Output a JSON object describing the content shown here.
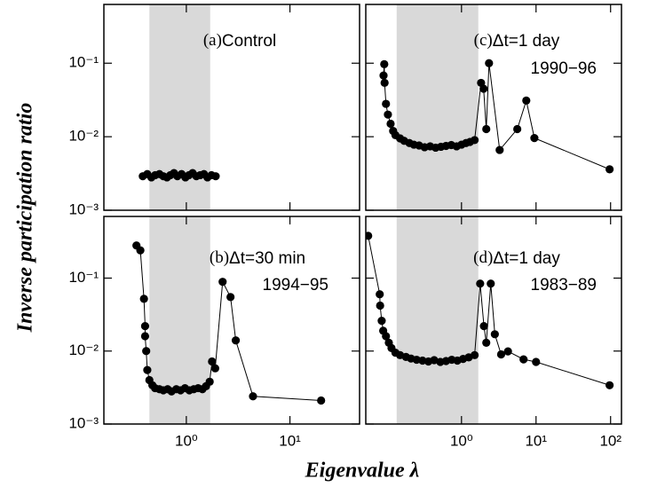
{
  "xlabel": "Eigenvalue λ",
  "ylabel": "Inverse participation ratio",
  "chart_data": [
    {
      "type": "line",
      "label": "(a)",
      "title": "Control",
      "color": "#000000",
      "band": [
        0.44,
        1.7
      ],
      "band_color": "#d9d9d9",
      "log_x": true,
      "log_y": true,
      "x": [
        0.38,
        0.42,
        0.46,
        0.5,
        0.55,
        0.6,
        0.65,
        0.7,
        0.76,
        0.82,
        0.9,
        0.98,
        1.06,
        1.15,
        1.25,
        1.36,
        1.48,
        1.6,
        1.75,
        1.92
      ],
      "y": [
        0.0029,
        0.0031,
        0.0028,
        0.003,
        0.0031,
        0.0029,
        0.0028,
        0.003,
        0.0032,
        0.0029,
        0.0031,
        0.0028,
        0.003,
        0.0032,
        0.0029,
        0.003,
        0.0031,
        0.0028,
        0.003,
        0.0029
      ],
      "xlim": [
        0.16,
        47
      ],
      "ylim": [
        0.001,
        0.63
      ],
      "xticks": [
        1,
        10
      ],
      "yticks": [
        {
          "value": 0.001,
          "label": "10⁻³"
        },
        {
          "value": 0.01,
          "label": "10⁻²"
        },
        {
          "value": 0.1,
          "label": "10⁻¹"
        }
      ]
    },
    {
      "type": "line",
      "label": "(b)",
      "title": "Δt=30 min",
      "subtitle": "1994−95",
      "color": "#000000",
      "band": [
        0.44,
        1.7
      ],
      "band_color": "#d9d9d9",
      "log_x": true,
      "log_y": true,
      "x": [
        0.33,
        0.36,
        0.39,
        0.4,
        0.4,
        0.41,
        0.42,
        0.44,
        0.47,
        0.5,
        0.55,
        0.6,
        0.66,
        0.72,
        0.8,
        0.88,
        0.97,
        1.07,
        1.18,
        1.3,
        1.43,
        1.55,
        1.68,
        1.77,
        1.9,
        2.24,
        2.67,
        3.0,
        4.4,
        20
      ],
      "y": [
        0.28,
        0.24,
        0.052,
        0.022,
        0.016,
        0.01,
        0.0055,
        0.004,
        0.0034,
        0.0031,
        0.003,
        0.0029,
        0.003,
        0.0028,
        0.003,
        0.0029,
        0.0031,
        0.0029,
        0.003,
        0.0031,
        0.003,
        0.0033,
        0.0038,
        0.0072,
        0.0058,
        0.089,
        0.055,
        0.014,
        0.0024,
        0.0021
      ],
      "xlim": [
        0.16,
        47
      ],
      "ylim": [
        0.001,
        0.7
      ],
      "xticks": [
        {
          "value": 1,
          "label": "10⁰"
        },
        {
          "value": 10,
          "label": "10¹"
        }
      ],
      "yticks": [
        {
          "value": 0.001,
          "label": "10⁻³"
        },
        {
          "value": 0.01,
          "label": "10⁻²"
        },
        {
          "value": 0.1,
          "label": "10⁻¹"
        }
      ]
    },
    {
      "type": "line",
      "label": "(c)",
      "title": "Δt=1 day",
      "subtitle": "1990−96",
      "color": "#000000",
      "band": [
        0.135,
        1.68
      ],
      "band_color": "#d9d9d9",
      "log_x": true,
      "log_y": true,
      "x": [
        0.09,
        0.092,
        0.093,
        0.097,
        0.103,
        0.112,
        0.121,
        0.13,
        0.15,
        0.17,
        0.2,
        0.23,
        0.27,
        0.32,
        0.38,
        0.45,
        0.53,
        0.62,
        0.73,
        0.86,
        1.0,
        1.15,
        1.3,
        1.5,
        1.83,
        1.98,
        2.15,
        2.34,
        3.25,
        5.6,
        7.4,
        9.5,
        97
      ],
      "y": [
        0.068,
        0.097,
        0.054,
        0.028,
        0.02,
        0.015,
        0.012,
        0.0105,
        0.0095,
        0.0088,
        0.0082,
        0.0078,
        0.0076,
        0.0072,
        0.0074,
        0.0071,
        0.0073,
        0.0075,
        0.0077,
        0.0074,
        0.0078,
        0.0082,
        0.0085,
        0.009,
        0.054,
        0.045,
        0.0127,
        0.1,
        0.0066,
        0.0127,
        0.031,
        0.0096,
        0.0036
      ],
      "xlim": [
        0.052,
        140
      ],
      "ylim": [
        0.001,
        0.63
      ],
      "xticks": [
        1,
        10,
        100
      ],
      "yticks": [
        0.001,
        0.01,
        0.1
      ]
    },
    {
      "type": "line",
      "label": "(d)",
      "title": "Δt=1 day",
      "subtitle": "1983−89",
      "color": "#000000",
      "band": [
        0.135,
        1.68
      ],
      "band_color": "#d9d9d9",
      "log_x": true,
      "log_y": true,
      "x": [
        0.056,
        0.08,
        0.081,
        0.085,
        0.089,
        0.097,
        0.106,
        0.115,
        0.13,
        0.15,
        0.18,
        0.21,
        0.25,
        0.3,
        0.36,
        0.43,
        0.52,
        0.62,
        0.74,
        0.88,
        1.05,
        1.25,
        1.5,
        1.78,
        2.0,
        2.15,
        2.47,
        2.8,
        3.4,
        4.2,
        6.8,
        10,
        97
      ],
      "y": [
        0.38,
        0.06,
        0.042,
        0.026,
        0.019,
        0.016,
        0.013,
        0.011,
        0.0095,
        0.0088,
        0.0083,
        0.0079,
        0.0076,
        0.0074,
        0.0072,
        0.0075,
        0.0071,
        0.0073,
        0.0076,
        0.0074,
        0.0078,
        0.0082,
        0.0088,
        0.084,
        0.022,
        0.013,
        0.084,
        0.017,
        0.009,
        0.0099,
        0.0077,
        0.0071,
        0.0034
      ],
      "xlim": [
        0.052,
        140
      ],
      "ylim": [
        0.001,
        0.7
      ],
      "xticks": [
        {
          "value": 1,
          "label": "10⁰"
        },
        {
          "value": 10,
          "label": "10¹"
        },
        {
          "value": 100,
          "label": "10²"
        }
      ],
      "yticks": [
        0.001,
        0.01,
        0.1
      ]
    }
  ]
}
